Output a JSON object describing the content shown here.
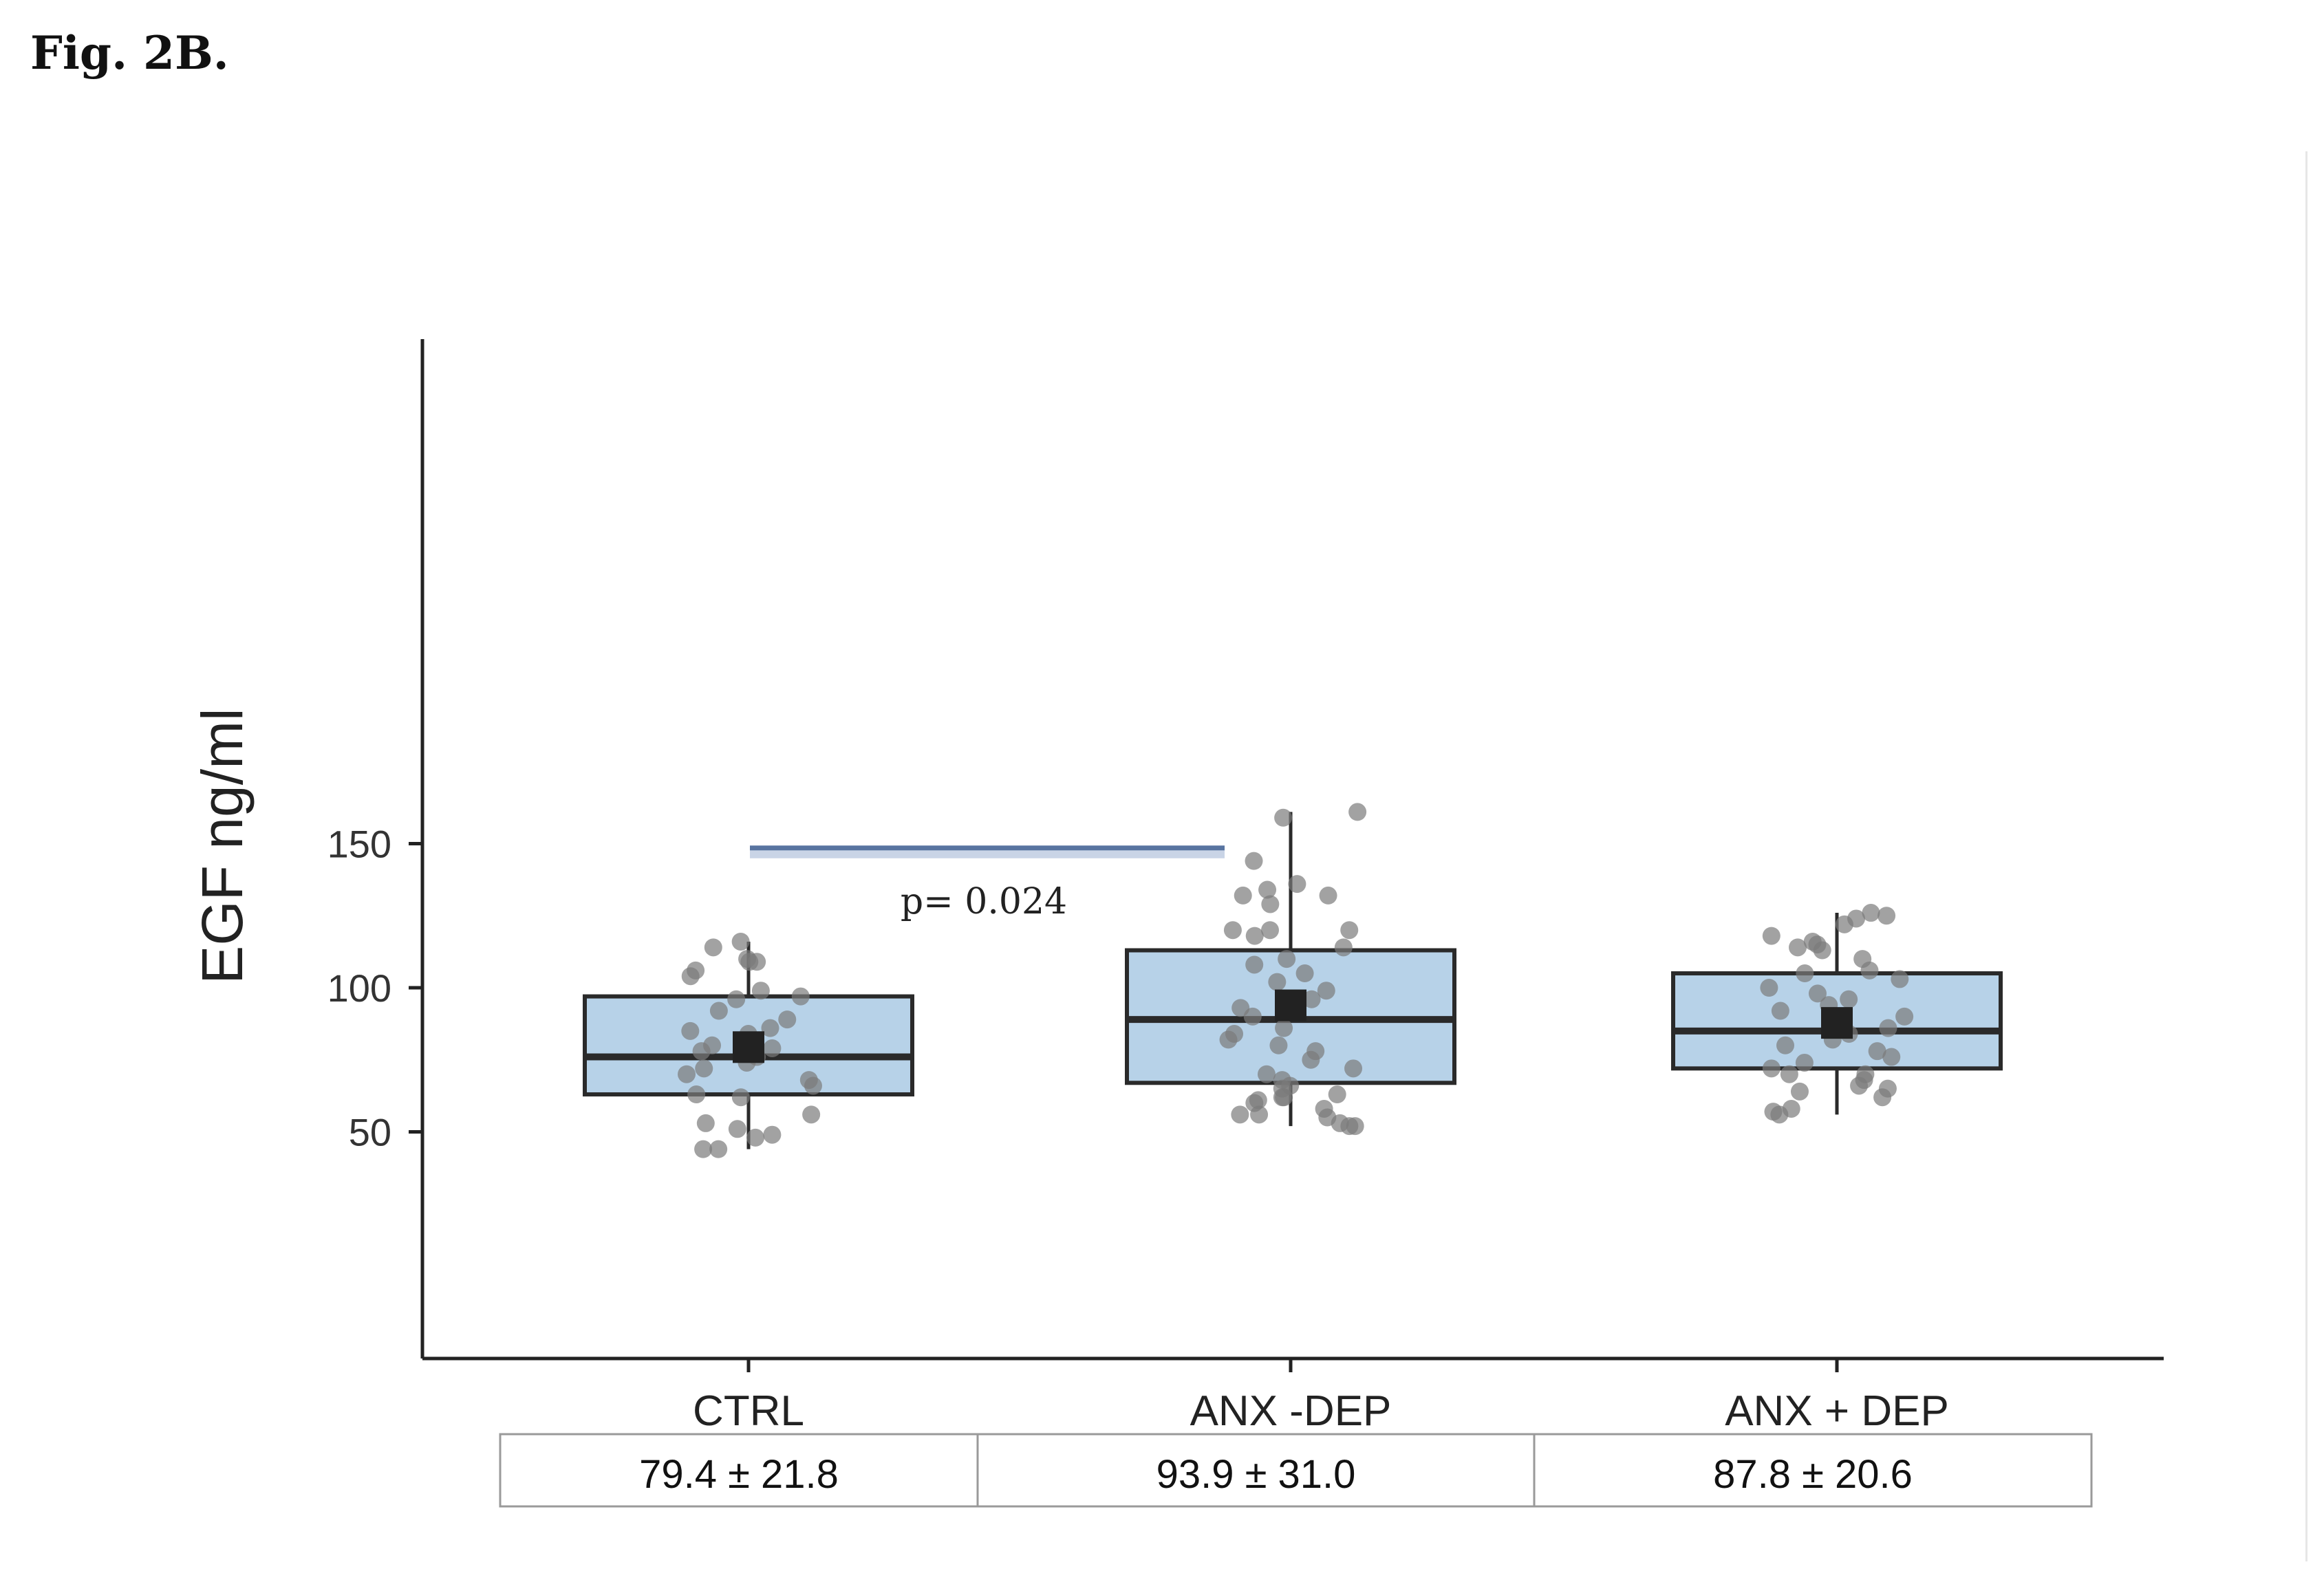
{
  "figure_label": "Fig. 2B.",
  "colors": {
    "box_fill": "#b7d2e8",
    "box_stroke": "#2a2a2a",
    "point": "#7a7a7a",
    "mean_marker": "#222222",
    "significance_line": "#5874a0"
  },
  "chart_data": {
    "type": "box",
    "title": "",
    "xlabel": "",
    "ylabel": "EGF ng/ml",
    "ylim": [
      36,
      202
    ],
    "yticks": [
      50,
      100,
      150
    ],
    "categories": [
      "CTRL",
      "ANX -DEP",
      "ANX + DEP"
    ],
    "boxes": [
      {
        "category": "CTRL",
        "whisker_low": 44,
        "q1": 63,
        "median": 76,
        "q3": 97,
        "whisker_high": 116,
        "mean": 79.4
      },
      {
        "category": "ANX -DEP",
        "whisker_low": 52,
        "q1": 67,
        "median": 89,
        "q3": 113,
        "whisker_high": 161,
        "mean": 93.9
      },
      {
        "category": "ANX + DEP",
        "whisker_low": 56,
        "q1": 72,
        "median": 85,
        "q3": 105,
        "whisker_high": 126,
        "mean": 87.8
      }
    ],
    "points": [
      [
        110,
        109,
        106,
        114,
        116,
        109,
        104,
        97,
        99,
        96,
        92,
        89,
        86,
        85,
        84,
        80,
        79,
        78,
        76,
        74,
        72,
        70,
        68,
        66,
        63,
        62,
        56,
        53,
        51,
        48,
        49,
        44,
        44
      ],
      [
        161,
        159,
        144,
        136,
        134,
        132,
        132,
        129,
        120,
        120,
        120,
        118,
        114,
        110,
        108,
        105,
        102,
        99,
        96,
        93,
        90,
        86,
        84,
        82,
        80,
        78,
        75,
        72,
        70,
        68,
        66,
        65,
        63,
        62,
        62,
        61,
        60,
        58,
        56,
        56,
        55,
        53,
        52,
        52
      ],
      [
        125,
        126,
        124,
        122,
        118,
        116,
        115,
        114,
        113,
        110,
        106,
        105,
        103,
        100,
        98,
        96,
        94,
        92,
        90,
        88,
        86,
        84,
        82,
        80,
        78,
        76,
        74,
        72,
        70,
        70,
        68,
        66,
        65,
        64,
        62,
        58,
        57,
        56
      ]
    ],
    "comparison": {
      "from": "CTRL",
      "to": "ANX -DEP",
      "y": 148.5,
      "label": "p= 0.024"
    },
    "summary_row": [
      "79.4 ± 21.8",
      "93.9 ± 31.0",
      "87.8 ± 20.6"
    ]
  }
}
